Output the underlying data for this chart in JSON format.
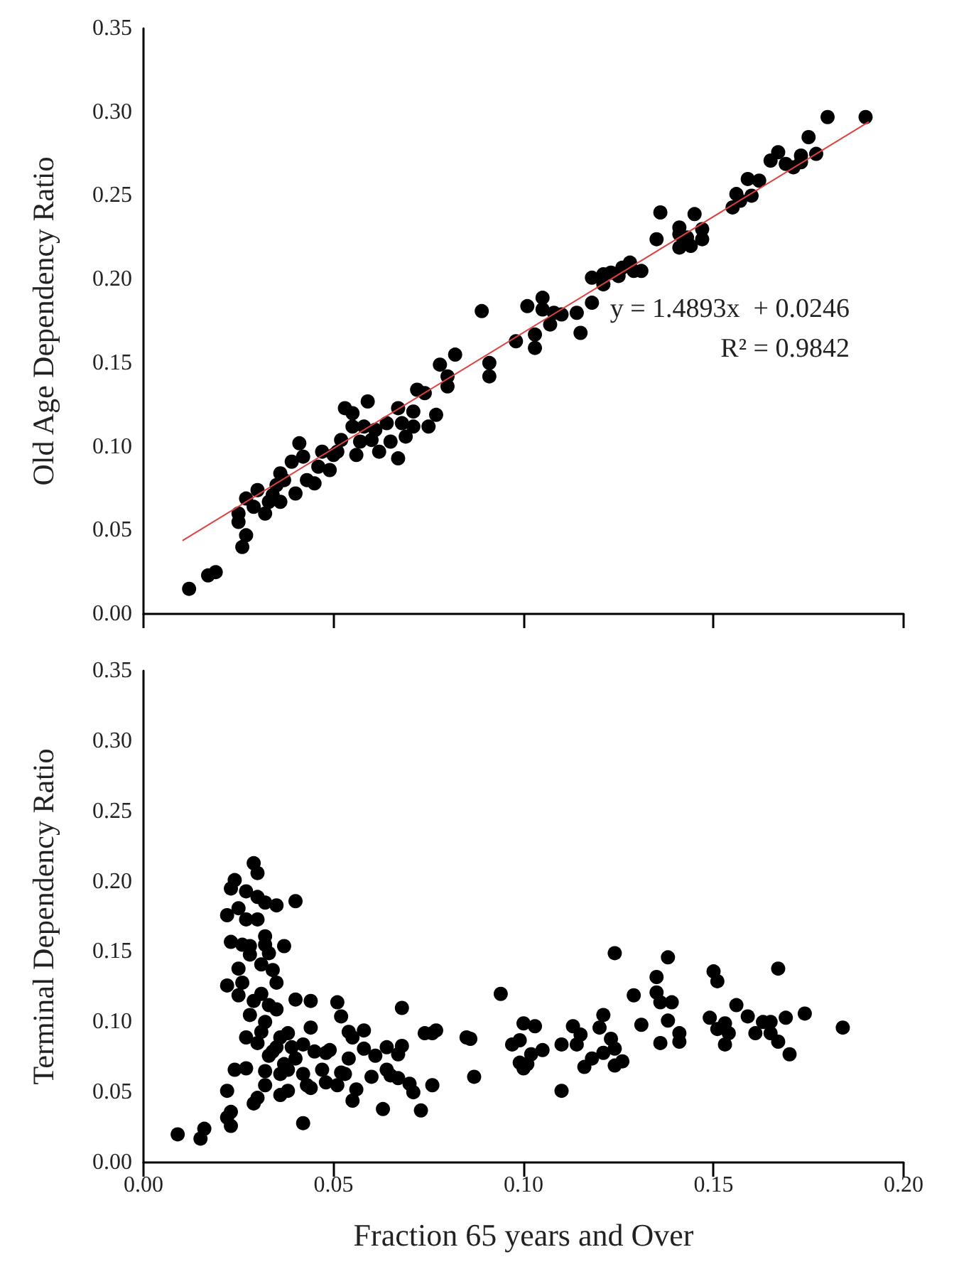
{
  "chart_data": [
    {
      "type": "scatter",
      "ylabel": "Old Age Dependency Ratio",
      "xlim": [
        0,
        0.2
      ],
      "ylim": [
        0,
        0.35
      ],
      "xticks": [
        {
          "value": 0,
          "label": null
        },
        {
          "value": 0.05,
          "label": null
        },
        {
          "value": 0.1,
          "label": null
        },
        {
          "value": 0.15,
          "label": null
        },
        {
          "value": 0.2,
          "label": null
        }
      ],
      "yticks": [
        {
          "value": 0,
          "label": "0.00"
        },
        {
          "value": 0.05,
          "label": "0.05"
        },
        {
          "value": 0.1,
          "label": "0.10"
        },
        {
          "value": 0.15,
          "label": "0.15"
        },
        {
          "value": 0.2,
          "label": "0.20"
        },
        {
          "value": 0.25,
          "label": "0.25"
        },
        {
          "value": 0.3,
          "label": "0.30"
        },
        {
          "value": 0.35,
          "label": "0.35"
        }
      ],
      "tick_labels": "y",
      "grid": false,
      "legend": false,
      "annotations": [
        "y = 1.4893x  + 0.0246",
        "R² = 0.9842"
      ],
      "series": [
        {
          "color": "#000000",
          "marker": "circle",
          "x": [
            0.012,
            0.017,
            0.019,
            0.026,
            0.027,
            0.025,
            0.025,
            0.027,
            0.03,
            0.032,
            0.033,
            0.035,
            0.036,
            0.039,
            0.041,
            0.036,
            0.04,
            0.042,
            0.045,
            0.047,
            0.049,
            0.051,
            0.052,
            0.053,
            0.055,
            0.055,
            0.056,
            0.058,
            0.059,
            0.06,
            0.061,
            0.062,
            0.065,
            0.064,
            0.067,
            0.067,
            0.068,
            0.069,
            0.071,
            0.071,
            0.072,
            0.074,
            0.075,
            0.077,
            0.078,
            0.08,
            0.08,
            0.082,
            0.089,
            0.091,
            0.091,
            0.098,
            0.101,
            0.103,
            0.103,
            0.105,
            0.105,
            0.107,
            0.108,
            0.11,
            0.114,
            0.115,
            0.118,
            0.118,
            0.121,
            0.121,
            0.123,
            0.125,
            0.126,
            0.128,
            0.129,
            0.131,
            0.135,
            0.136,
            0.141,
            0.141,
            0.141,
            0.143,
            0.144,
            0.145,
            0.147,
            0.147,
            0.155,
            0.156,
            0.157,
            0.159,
            0.16,
            0.162,
            0.165,
            0.167,
            0.169,
            0.171,
            0.173,
            0.173,
            0.175,
            0.177,
            0.18,
            0.19,
            0.029,
            0.034,
            0.037,
            0.043,
            0.046,
            0.05,
            0.057
          ],
          "values": [
            0.015,
            0.023,
            0.025,
            0.04,
            0.047,
            0.055,
            0.06,
            0.069,
            0.074,
            0.06,
            0.067,
            0.077,
            0.084,
            0.091,
            0.102,
            0.067,
            0.072,
            0.094,
            0.078,
            0.097,
            0.086,
            0.097,
            0.104,
            0.123,
            0.12,
            0.112,
            0.095,
            0.112,
            0.127,
            0.104,
            0.11,
            0.097,
            0.103,
            0.114,
            0.093,
            0.123,
            0.114,
            0.106,
            0.112,
            0.121,
            0.134,
            0.132,
            0.112,
            0.119,
            0.149,
            0.142,
            0.136,
            0.155,
            0.181,
            0.15,
            0.142,
            0.163,
            0.184,
            0.159,
            0.167,
            0.189,
            0.182,
            0.173,
            0.18,
            0.179,
            0.18,
            0.168,
            0.186,
            0.201,
            0.197,
            0.203,
            0.204,
            0.202,
            0.207,
            0.21,
            0.205,
            0.205,
            0.224,
            0.24,
            0.227,
            0.219,
            0.231,
            0.225,
            0.22,
            0.239,
            0.23,
            0.224,
            0.243,
            0.251,
            0.247,
            0.26,
            0.25,
            0.259,
            0.271,
            0.276,
            0.269,
            0.267,
            0.274,
            0.27,
            0.285,
            0.275,
            0.297,
            0.297,
            0.064,
            0.071,
            0.08,
            0.08,
            0.088,
            0.095,
            0.103
          ]
        },
        {
          "type": "line",
          "color": "#e04040",
          "marker": "none",
          "line_style": "solid",
          "x": [
            0.0104,
            0.1907
          ],
          "values": [
            0.044,
            0.294
          ]
        }
      ]
    },
    {
      "type": "scatter",
      "xlabel": "Fraction 65 years and Over",
      "ylabel": "Terminal Dependency Ratio",
      "xlim": [
        0,
        0.2
      ],
      "ylim": [
        0,
        0.35
      ],
      "xticks": [
        {
          "value": 0,
          "label": "0.00"
        },
        {
          "value": 0.05,
          "label": "0.05"
        },
        {
          "value": 0.1,
          "label": "0.10"
        },
        {
          "value": 0.15,
          "label": "0.15"
        },
        {
          "value": 0.2,
          "label": "0.20"
        }
      ],
      "yticks": [
        {
          "value": 0,
          "label": "0.00"
        },
        {
          "value": 0.05,
          "label": "0.05"
        },
        {
          "value": 0.1,
          "label": "0.10"
        },
        {
          "value": 0.15,
          "label": "0.15"
        },
        {
          "value": 0.2,
          "label": "0.20"
        },
        {
          "value": 0.25,
          "label": "0.25"
        },
        {
          "value": 0.3,
          "label": "0.30"
        },
        {
          "value": 0.35,
          "label": "0.35"
        }
      ],
      "grid": false,
      "legend": false,
      "series": [
        {
          "color": "#000000",
          "marker": "circle",
          "x": [
            0.009,
            0.015,
            0.016,
            0.022,
            0.022,
            0.023,
            0.023,
            0.022,
            0.022,
            0.023,
            0.024,
            0.025,
            0.023,
            0.025,
            0.025,
            0.024,
            0.026,
            0.026,
            0.027,
            0.027,
            0.027,
            0.027,
            0.028,
            0.028,
            0.028,
            0.029,
            0.029,
            0.029,
            0.03,
            0.03,
            0.03,
            0.03,
            0.03,
            0.031,
            0.031,
            0.031,
            0.032,
            0.032,
            0.032,
            0.032,
            0.032,
            0.032,
            0.033,
            0.033,
            0.033,
            0.034,
            0.034,
            0.035,
            0.035,
            0.035,
            0.035,
            0.036,
            0.036,
            0.036,
            0.037,
            0.037,
            0.038,
            0.038,
            0.038,
            0.039,
            0.04,
            0.04,
            0.04,
            0.042,
            0.042,
            0.042,
            0.043,
            0.044,
            0.044,
            0.044,
            0.045,
            0.047,
            0.048,
            0.048,
            0.049,
            0.051,
            0.051,
            0.052,
            0.052,
            0.053,
            0.054,
            0.054,
            0.055,
            0.055,
            0.056,
            0.058,
            0.058,
            0.06,
            0.061,
            0.063,
            0.064,
            0.064,
            0.065,
            0.067,
            0.067,
            0.068,
            0.068,
            0.07,
            0.071,
            0.073,
            0.074,
            0.076,
            0.076,
            0.077,
            0.085,
            0.086,
            0.087,
            0.094,
            0.097,
            0.099,
            0.099,
            0.1,
            0.1,
            0.101,
            0.102,
            0.103,
            0.105,
            0.11,
            0.11,
            0.113,
            0.114,
            0.115,
            0.116,
            0.118,
            0.12,
            0.121,
            0.121,
            0.123,
            0.124,
            0.124,
            0.124,
            0.126,
            0.129,
            0.131,
            0.135,
            0.135,
            0.136,
            0.136,
            0.138,
            0.138,
            0.139,
            0.141,
            0.141,
            0.149,
            0.15,
            0.151,
            0.151,
            0.153,
            0.153,
            0.154,
            0.156,
            0.159,
            0.161,
            0.163,
            0.165,
            0.165,
            0.167,
            0.167,
            0.169,
            0.17,
            0.174,
            0.184
          ],
          "values": [
            0.02,
            0.017,
            0.024,
            0.051,
            0.032,
            0.036,
            0.026,
            0.126,
            0.176,
            0.195,
            0.201,
            0.181,
            0.157,
            0.138,
            0.119,
            0.066,
            0.155,
            0.128,
            0.089,
            0.193,
            0.173,
            0.067,
            0.105,
            0.148,
            0.154,
            0.213,
            0.115,
            0.042,
            0.046,
            0.085,
            0.173,
            0.189,
            0.206,
            0.141,
            0.093,
            0.12,
            0.1,
            0.155,
            0.185,
            0.161,
            0.065,
            0.055,
            0.076,
            0.112,
            0.149,
            0.137,
            0.079,
            0.109,
            0.082,
            0.183,
            0.128,
            0.063,
            0.089,
            0.048,
            0.07,
            0.154,
            0.066,
            0.092,
            0.051,
            0.082,
            0.186,
            0.116,
            0.074,
            0.028,
            0.063,
            0.084,
            0.055,
            0.096,
            0.115,
            0.053,
            0.079,
            0.066,
            0.057,
            0.078,
            0.08,
            0.055,
            0.114,
            0.104,
            0.064,
            0.063,
            0.074,
            0.093,
            0.044,
            0.089,
            0.052,
            0.081,
            0.094,
            0.061,
            0.076,
            0.038,
            0.066,
            0.082,
            0.062,
            0.06,
            0.077,
            0.11,
            0.083,
            0.056,
            0.05,
            0.037,
            0.092,
            0.055,
            0.092,
            0.094,
            0.089,
            0.088,
            0.061,
            0.12,
            0.084,
            0.087,
            0.071,
            0.067,
            0.099,
            0.07,
            0.077,
            0.097,
            0.08,
            0.084,
            0.051,
            0.097,
            0.084,
            0.091,
            0.068,
            0.074,
            0.096,
            0.105,
            0.078,
            0.088,
            0.069,
            0.081,
            0.149,
            0.072,
            0.119,
            0.098,
            0.132,
            0.121,
            0.085,
            0.114,
            0.146,
            0.101,
            0.114,
            0.086,
            0.092,
            0.103,
            0.136,
            0.129,
            0.095,
            0.099,
            0.084,
            0.092,
            0.112,
            0.104,
            0.092,
            0.1,
            0.092,
            0.1,
            0.138,
            0.086,
            0.103,
            0.077,
            0.106,
            0.096
          ]
        }
      ]
    }
  ]
}
